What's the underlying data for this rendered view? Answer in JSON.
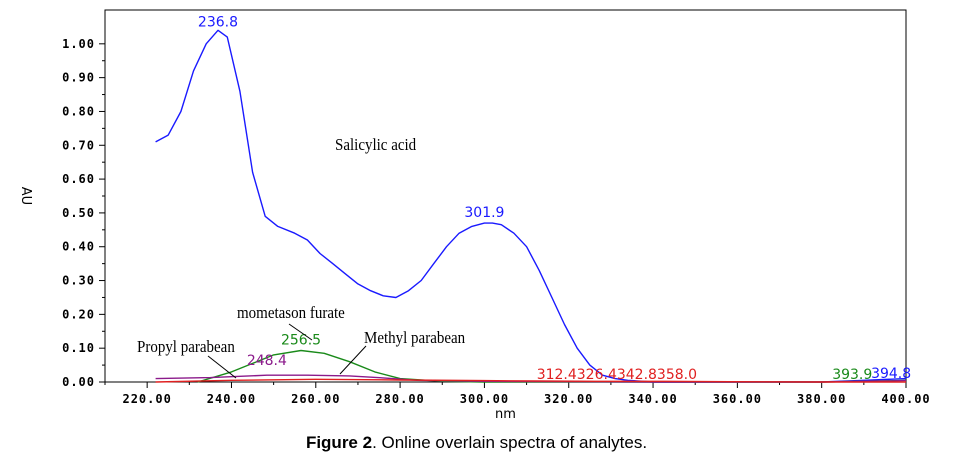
{
  "chart_data": {
    "type": "line",
    "xlabel": "nm",
    "ylabel": "AU",
    "xlim": [
      210,
      400
    ],
    "ylim": [
      0,
      1.1
    ],
    "x_ticks": [
      "220.00",
      "240.00",
      "260.00",
      "280.00",
      "300.00",
      "320.00",
      "340.00",
      "360.00",
      "380.00",
      "400.00"
    ],
    "y_ticks": [
      "0.00",
      "0.10",
      "0.20",
      "0.30",
      "0.40",
      "0.50",
      "0.60",
      "0.70",
      "0.80",
      "0.90",
      "1.00"
    ],
    "series": [
      {
        "name": "Salicylic acid",
        "color": "#1a1aff",
        "x": [
          222,
          225,
          228,
          231,
          234,
          236.8,
          239,
          242,
          245,
          248,
          251,
          255,
          258,
          261,
          264,
          267,
          270,
          273,
          276,
          279,
          282,
          285,
          288,
          291,
          294,
          297,
          300,
          301.9,
          304,
          307,
          310,
          313,
          316,
          319,
          322,
          325,
          328,
          331,
          334,
          340,
          350,
          360,
          370,
          380,
          390,
          400
        ],
        "y": [
          0.71,
          0.73,
          0.8,
          0.92,
          1.0,
          1.04,
          1.02,
          0.86,
          0.62,
          0.49,
          0.46,
          0.44,
          0.42,
          0.38,
          0.35,
          0.32,
          0.29,
          0.27,
          0.255,
          0.25,
          0.27,
          0.3,
          0.35,
          0.4,
          0.44,
          0.46,
          0.47,
          0.47,
          0.465,
          0.44,
          0.4,
          0.33,
          0.25,
          0.17,
          0.1,
          0.05,
          0.02,
          0.01,
          0.005,
          0.0,
          0.0,
          0.0,
          0.0,
          0.0,
          0.005,
          0.01
        ]
      },
      {
        "name": "mometason furate",
        "color": "#1a8a1a",
        "x": [
          232,
          240,
          245,
          250,
          256.5,
          262,
          268,
          274,
          280,
          290,
          300,
          320,
          340,
          360,
          380,
          393.9,
          400
        ],
        "y": [
          0.0,
          0.03,
          0.055,
          0.08,
          0.093,
          0.085,
          0.06,
          0.03,
          0.01,
          0.002,
          0.0,
          0.0,
          0.0,
          0.0,
          0.0,
          0.003,
          0.005
        ]
      },
      {
        "name": "Methyl parabean",
        "color": "#8b1a8b",
        "x": [
          222,
          235,
          248.4,
          258,
          268,
          276,
          284,
          300,
          320,
          340,
          360,
          380,
          394.8,
          400
        ],
        "y": [
          0.01,
          0.013,
          0.02,
          0.02,
          0.018,
          0.012,
          0.005,
          0.002,
          0.001,
          0.0,
          0.0,
          0.0,
          0.003,
          0.004
        ]
      },
      {
        "name": "Propyl parabean",
        "color": "#e02020",
        "x": [
          222,
          240,
          260,
          280,
          300,
          312.4,
          326.4,
          342.8,
          358.0,
          380,
          400
        ],
        "y": [
          0.0,
          0.005,
          0.008,
          0.006,
          0.004,
          0.003,
          0.002,
          0.002,
          0.001,
          0.0,
          0.0
        ]
      }
    ],
    "peak_labels": [
      {
        "text": "236.8",
        "x": 236.8,
        "y": 1.04,
        "color": "#1a1aff"
      },
      {
        "text": "301.9",
        "x": 301.9,
        "y": 0.47,
        "color": "#1a1aff"
      },
      {
        "text": "256.5",
        "x": 256.5,
        "y": 0.093,
        "color": "#1a8a1a"
      },
      {
        "text": "248.4",
        "x": 248.4,
        "y": 0.02,
        "color": "#8b1a8b"
      },
      {
        "text": "312.4326.4342.8358.0",
        "x": 312.4,
        "y": 0.0,
        "color": "#e02020"
      },
      {
        "text": "393.9",
        "x": 393.9,
        "y": 0.0,
        "color": "#1a8a1a"
      },
      {
        "text": "394.8",
        "x": 394.8,
        "y": 0.0,
        "color": "#1a1aff"
      }
    ],
    "annotations": [
      {
        "text": "Salicylic acid"
      },
      {
        "text": "mometason furate"
      },
      {
        "text": "Methyl parabean"
      },
      {
        "text": "Propyl parabean"
      }
    ]
  },
  "caption": {
    "label": "Figure 2",
    "text": ". Online overlain spectra of analytes."
  }
}
